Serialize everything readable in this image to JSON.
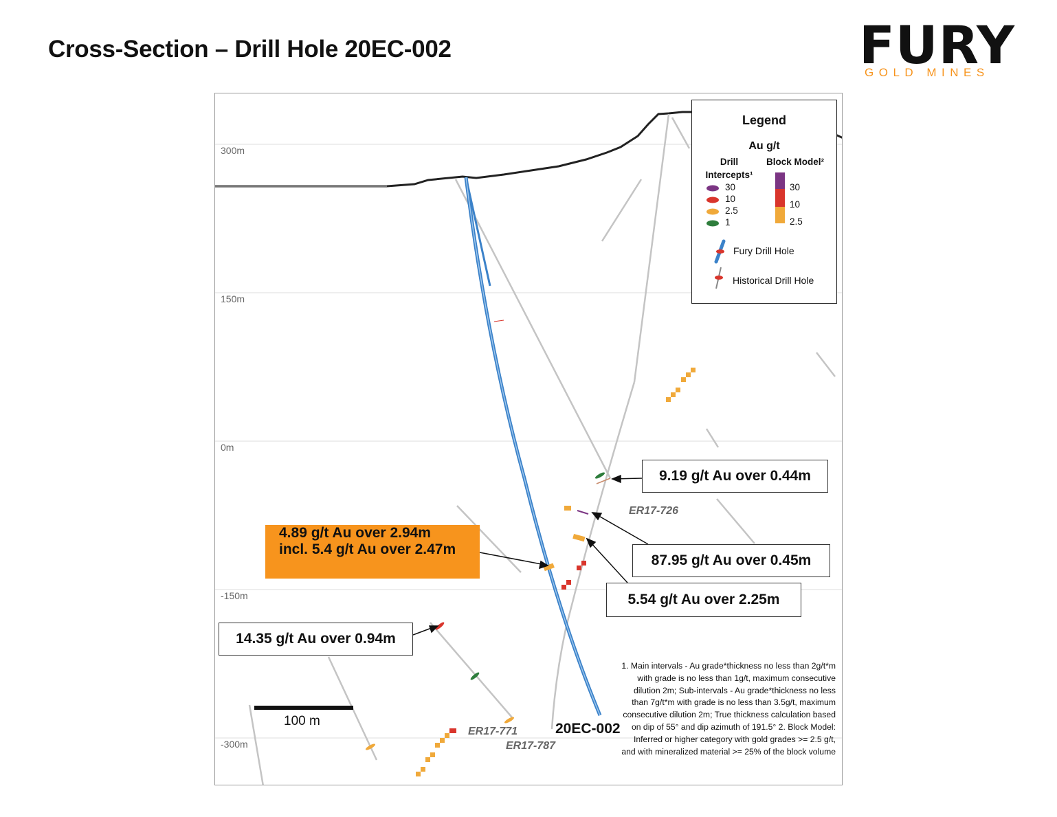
{
  "title": "Cross-Section – Drill Hole 20EC-002",
  "logo": {
    "word": "FURY",
    "sub": "GOLD MINES",
    "accent": "#f7941d"
  },
  "elevations": [
    "300m",
    "150m",
    "0m",
    "-150m",
    "-300m"
  ],
  "legend": {
    "title": "Legend",
    "unit": "Au g/t",
    "col_intercepts": "Drill Intercepts¹",
    "col_block": "Block Model²",
    "intercepts": [
      {
        "value": "30",
        "color": "#7b3583"
      },
      {
        "value": "10",
        "color": "#d9352c"
      },
      {
        "value": "2.5",
        "color": "#f0a93a"
      },
      {
        "value": "1",
        "color": "#2e7d3c"
      }
    ],
    "block_model": [
      {
        "value": "30",
        "color": "#7b3583"
      },
      {
        "value": "10",
        "color": "#d9352c"
      },
      {
        "value": "2.5",
        "color": "#f0a93a"
      }
    ],
    "fury_hole": "Fury Drill Hole",
    "historical_hole": "Historical Drill Hole"
  },
  "callouts": {
    "c1": "9.19 g/t Au over 0.44m",
    "c2": "87.95 g/t Au over 0.45m",
    "c3": "5.54 g/t Au over 2.25m",
    "c4": "14.35 g/t Au over 0.94m",
    "primary_line1": "4.89 g/t Au over 2.94m",
    "primary_line2": "incl. 5.4 g/t Au over 2.47m"
  },
  "holes": {
    "main": "20EC-002",
    "h1": "ER17-726",
    "h2": "ER17-771",
    "h3": "ER17-787"
  },
  "scale_bar": "100 m",
  "notes": "1. Main intervals - Au grade*thickness no less than 2g/t*m with grade is no less than 1g/t, maximum consecutive dilution 2m; Sub-intervals - Au grade*thickness no less than 7g/t*m with grade is no less than 3.5g/t, maximum consecutive dilution 2m; True thickness calculation based on dip of 55° and dip azimuth of 191.5° 2. Block Model: Inferred or higher category with gold grades >= 2.5 g/t, and with mineralized material >= 25% of the block volume",
  "colors": {
    "fury_hole": "#3b82c9",
    "historical_hole": "#bdbdbd",
    "grade_30": "#7b3583",
    "grade_10": "#d9352c",
    "grade_2_5": "#f0a93a",
    "grade_1": "#2e7d3c"
  }
}
